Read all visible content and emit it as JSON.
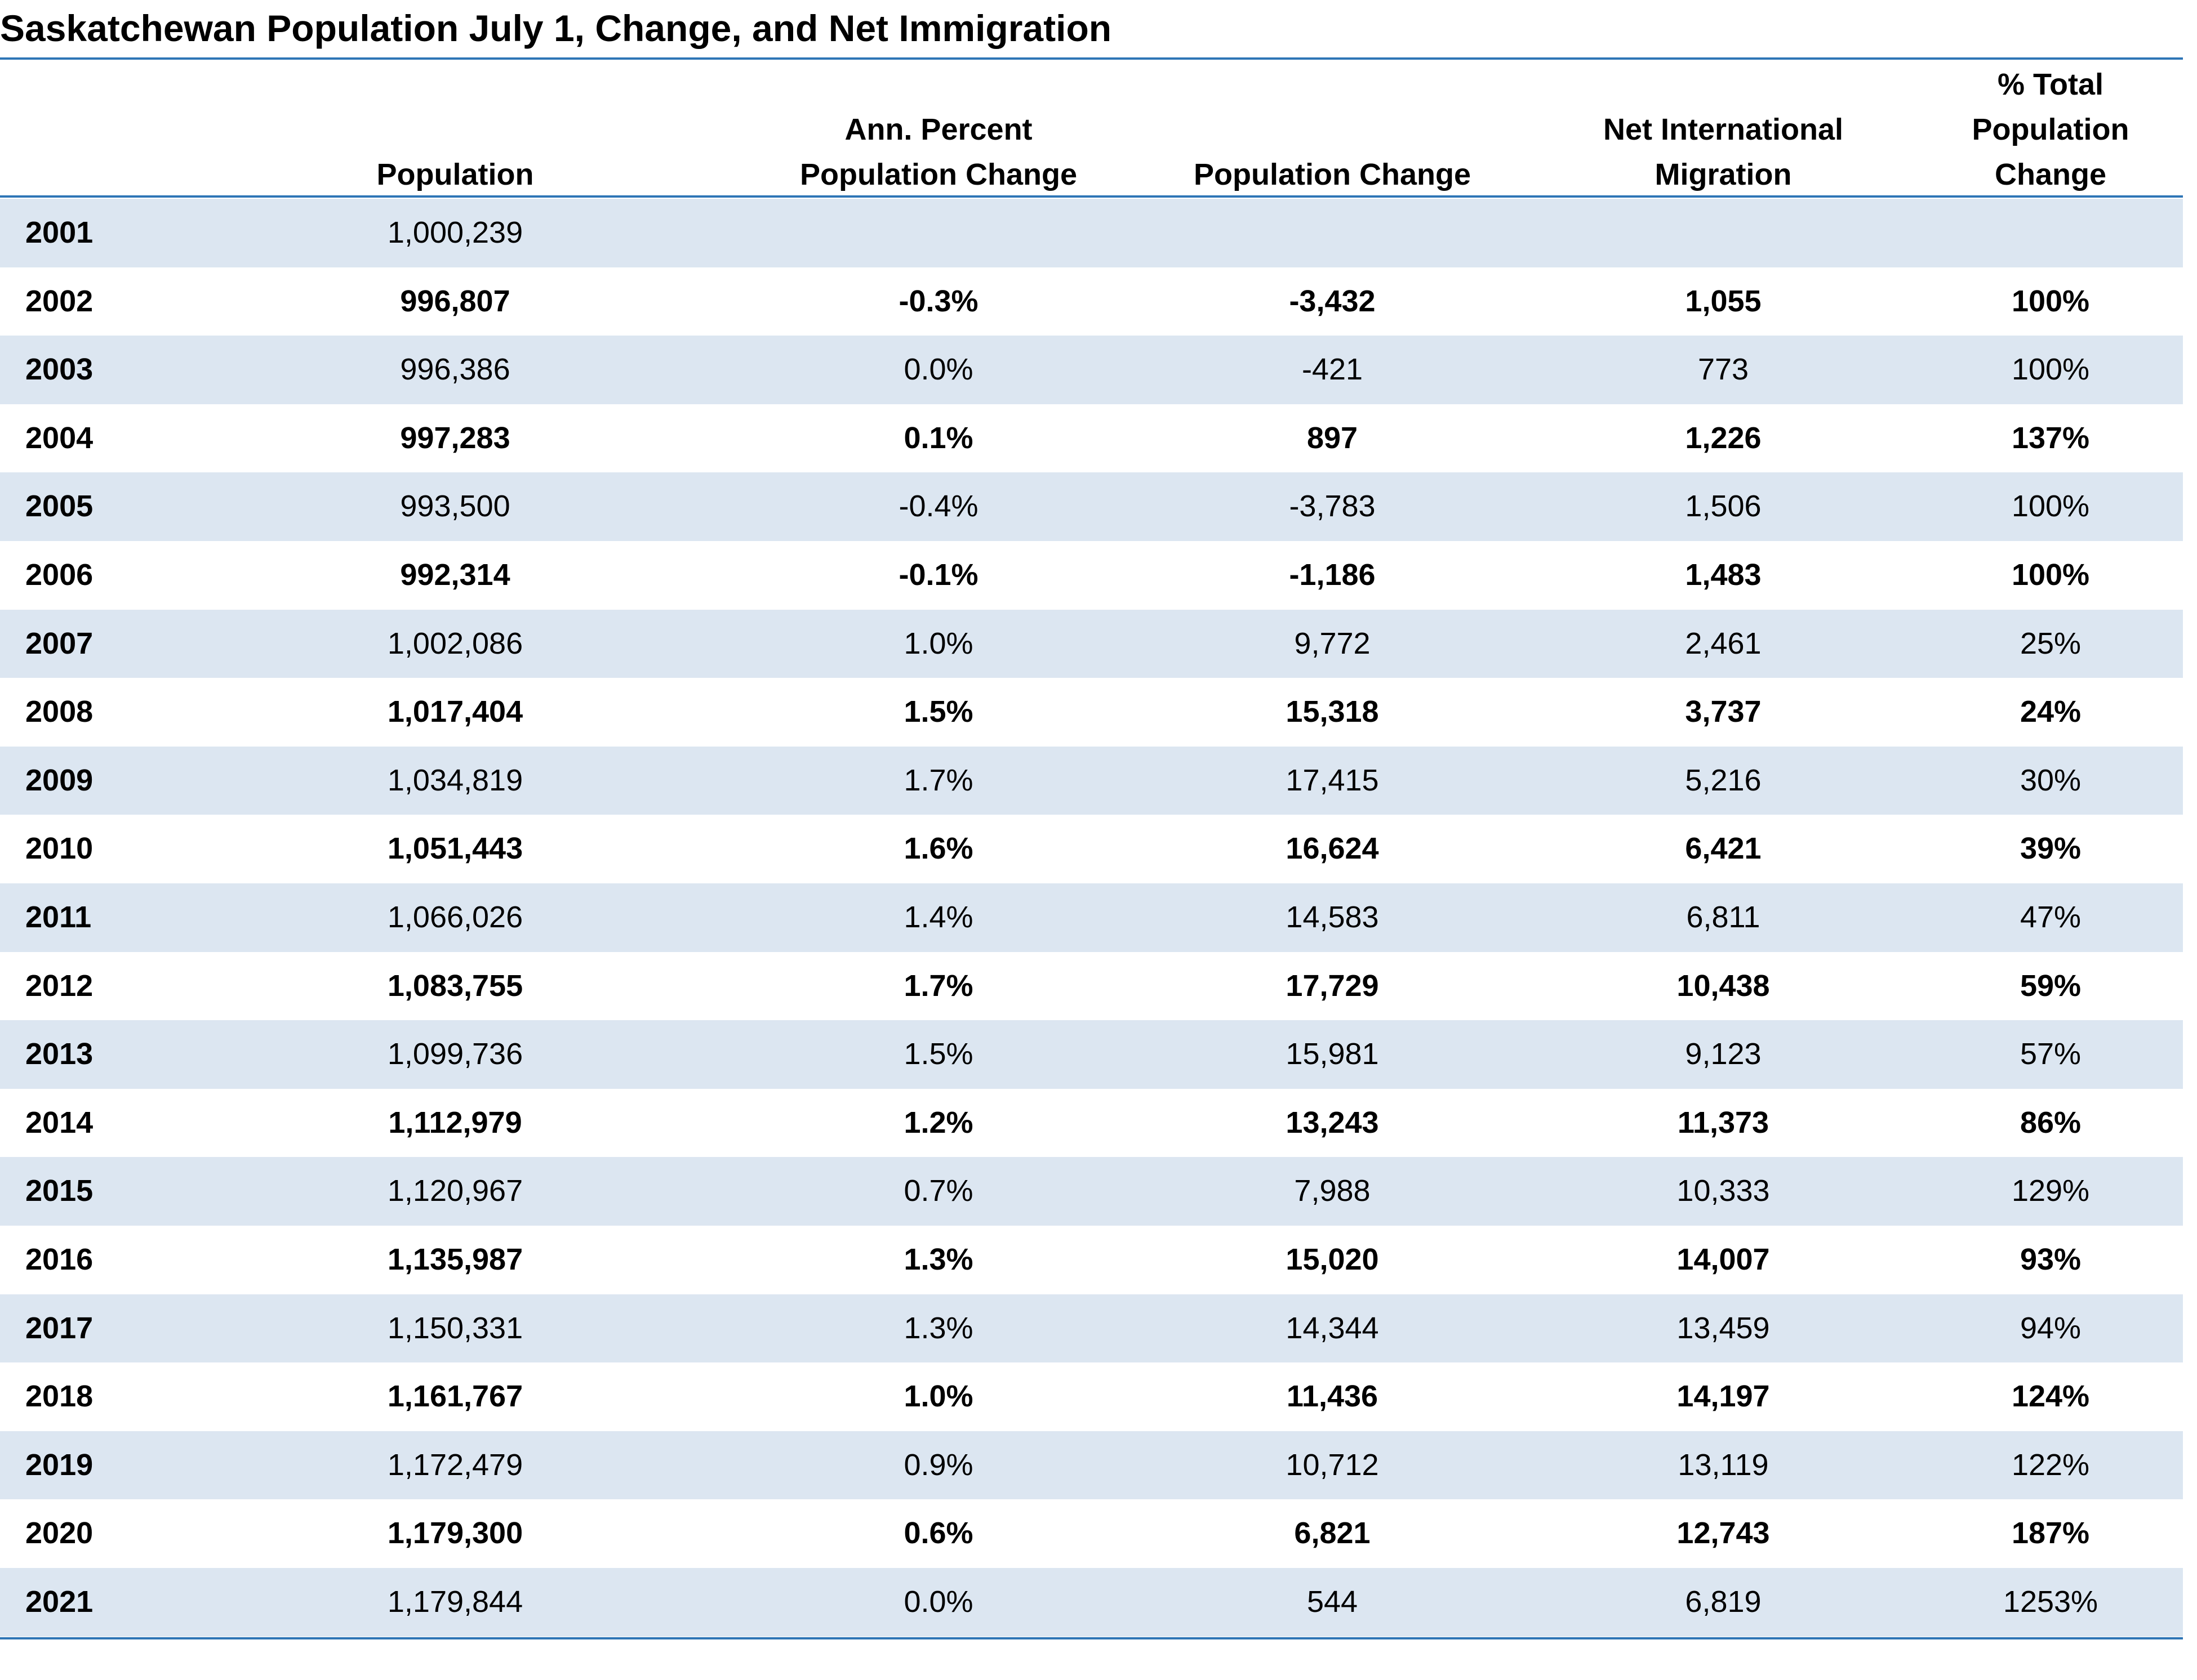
{
  "title": "Saskatchewan Population July 1, Change, and Net Immigration",
  "table": {
    "columns": [
      [
        "Population"
      ],
      [
        "Ann. Percent",
        "Population Change"
      ],
      [
        "Population Change"
      ],
      [
        "Net International",
        "Migration"
      ],
      [
        "% Total",
        "Population",
        "Change"
      ]
    ],
    "rows": [
      [
        "2001",
        "1,000,239"
      ],
      [
        "2002",
        "996,807",
        "-0.3%",
        "-3,432",
        "1,055",
        "100%"
      ],
      [
        "2003",
        "996,386",
        "0.0%",
        "-421",
        "773",
        "100%"
      ],
      [
        "2004",
        "997,283",
        "0.1%",
        "897",
        "1,226",
        "137%"
      ],
      [
        "2005",
        "993,500",
        "-0.4%",
        "-3,783",
        "1,506",
        "100%"
      ],
      [
        "2006",
        "992,314",
        "-0.1%",
        "-1,186",
        "1,483",
        "100%"
      ],
      [
        "2007",
        "1,002,086",
        "1.0%",
        "9,772",
        "2,461",
        "25%"
      ],
      [
        "2008",
        "1,017,404",
        "1.5%",
        "15,318",
        "3,737",
        "24%"
      ],
      [
        "2009",
        "1,034,819",
        "1.7%",
        "17,415",
        "5,216",
        "30%"
      ],
      [
        "2010",
        "1,051,443",
        "1.6%",
        "16,624",
        "6,421",
        "39%"
      ],
      [
        "2011",
        "1,066,026",
        "1.4%",
        "14,583",
        "6,811",
        "47%"
      ],
      [
        "2012",
        "1,083,755",
        "1.7%",
        "17,729",
        "10,438",
        "59%"
      ],
      [
        "2013",
        "1,099,736",
        "1.5%",
        "15,981",
        "9,123",
        "57%"
      ],
      [
        "2014",
        "1,112,979",
        "1.2%",
        "13,243",
        "11,373",
        "86%"
      ],
      [
        "2015",
        "1,120,967",
        "0.7%",
        "7,988",
        "10,333",
        "129%"
      ],
      [
        "2016",
        "1,135,987",
        "1.3%",
        "15,020",
        "14,007",
        "93%"
      ],
      [
        "2017",
        "1,150,331",
        "1.3%",
        "14,344",
        "13,459",
        "94%"
      ],
      [
        "2018",
        "1,161,767",
        "1.0%",
        "11,436",
        "14,197",
        "124%"
      ],
      [
        "2019",
        "1,172,479",
        "0.9%",
        "10,712",
        "13,119",
        "122%"
      ],
      [
        "2020",
        "1,179,300",
        "0.6%",
        "6,821",
        "12,743",
        "187%"
      ],
      [
        "2021",
        "1,179,844",
        "0.0%",
        "544",
        "6,819",
        "1253%"
      ]
    ]
  }
}
